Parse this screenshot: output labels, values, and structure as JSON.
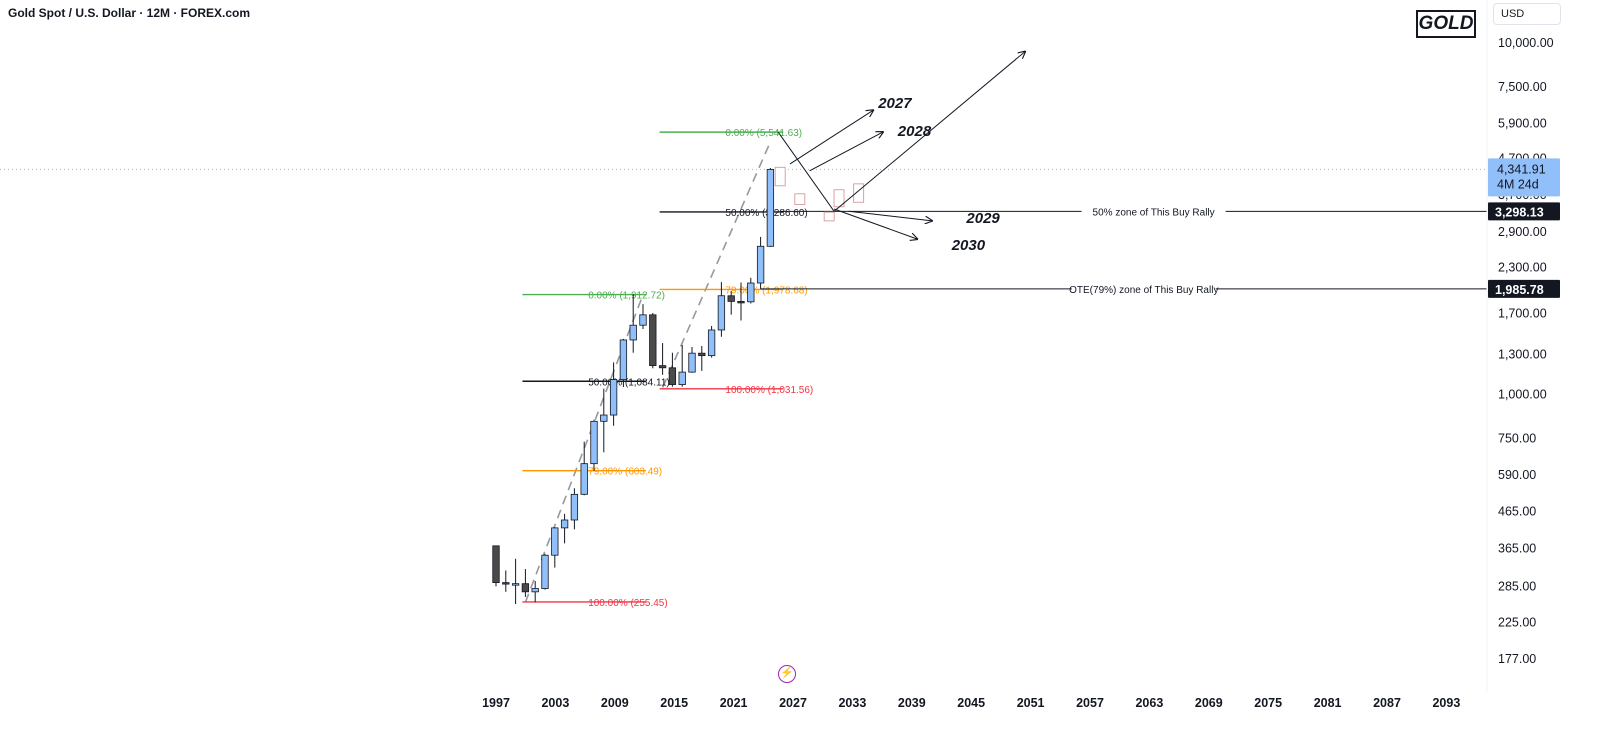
{
  "header": {
    "title": "Gold Spot / U.S. Dollar · 12M · FOREX.com"
  },
  "badge": {
    "label": "GOLD"
  },
  "currency_button": {
    "label": "USD"
  },
  "colors": {
    "up": "#90bff9",
    "down": "#4a4a4a",
    "ghost_up": "#ffffff",
    "ghost_border": "#d9a3a3",
    "fib_top": "#4caf50",
    "fib_mid": "#131722",
    "fib_ote": "#ff9800",
    "fib_bottom": "#f23645",
    "trend": "#9598a1",
    "flash": "#9c27b0"
  },
  "chart_data": {
    "type": "candlestick",
    "symbol": "Gold Spot / U.S. Dollar",
    "timeframe": "12M",
    "scale": "log",
    "x_ticks": [
      "1997",
      "2003",
      "2009",
      "2015",
      "2021",
      "2027",
      "2033",
      "2039",
      "2045",
      "2051",
      "2057",
      "2063",
      "2069",
      "2075",
      "2081",
      "2087",
      "2093"
    ],
    "y_ticks": [
      "10,000.00",
      "7,500.00",
      "5,900.00",
      "4,700.00",
      "3,700.00",
      "2,900.00",
      "2,300.00",
      "1,700.00",
      "1,300.00",
      "1,000.00",
      "750.00",
      "590.00",
      "465.00",
      "365.00",
      "285.00",
      "225.00",
      "177.00"
    ],
    "candles": [
      {
        "year": 1997,
        "open": 369,
        "high": 369,
        "low": 283,
        "close": 290
      },
      {
        "year": 1998,
        "open": 290,
        "high": 314,
        "low": 273,
        "close": 288
      },
      {
        "year": 1999,
        "open": 288,
        "high": 339,
        "low": 252,
        "close": 288
      },
      {
        "year": 2000,
        "open": 288,
        "high": 317,
        "low": 264,
        "close": 273
      },
      {
        "year": 2001,
        "open": 273,
        "high": 293,
        "low": 255,
        "close": 279
      },
      {
        "year": 2002,
        "open": 279,
        "high": 350,
        "low": 277,
        "close": 347
      },
      {
        "year": 2003,
        "open": 347,
        "high": 417,
        "low": 320,
        "close": 415
      },
      {
        "year": 2004,
        "open": 415,
        "high": 455,
        "low": 375,
        "close": 437
      },
      {
        "year": 2005,
        "open": 437,
        "high": 538,
        "low": 411,
        "close": 517
      },
      {
        "year": 2006,
        "open": 517,
        "high": 730,
        "low": 514,
        "close": 632
      },
      {
        "year": 2007,
        "open": 632,
        "high": 842,
        "low": 603,
        "close": 834
      },
      {
        "year": 2008,
        "open": 834,
        "high": 1033,
        "low": 681,
        "close": 869
      },
      {
        "year": 2009,
        "open": 869,
        "high": 1227,
        "low": 810,
        "close": 1096
      },
      {
        "year": 2010,
        "open": 1096,
        "high": 1431,
        "low": 1044,
        "close": 1421
      },
      {
        "year": 2011,
        "open": 1421,
        "high": 1920,
        "low": 1307,
        "close": 1565
      },
      {
        "year": 2012,
        "open": 1565,
        "high": 1796,
        "low": 1527,
        "close": 1675
      },
      {
        "year": 2013,
        "open": 1675,
        "high": 1696,
        "low": 1180,
        "close": 1201
      },
      {
        "year": 2014,
        "open": 1201,
        "high": 1392,
        "low": 1131,
        "close": 1184
      },
      {
        "year": 2015,
        "open": 1184,
        "high": 1307,
        "low": 1046,
        "close": 1061
      },
      {
        "year": 2016,
        "open": 1061,
        "high": 1375,
        "low": 1046,
        "close": 1151
      },
      {
        "year": 2017,
        "open": 1151,
        "high": 1357,
        "low": 1146,
        "close": 1303
      },
      {
        "year": 2018,
        "open": 1303,
        "high": 1366,
        "low": 1160,
        "close": 1282
      },
      {
        "year": 2019,
        "open": 1282,
        "high": 1557,
        "low": 1266,
        "close": 1517
      },
      {
        "year": 2020,
        "open": 1517,
        "high": 2075,
        "low": 1451,
        "close": 1898
      },
      {
        "year": 2021,
        "open": 1898,
        "high": 1959,
        "low": 1677,
        "close": 1829
      },
      {
        "year": 2022,
        "open": 1829,
        "high": 2070,
        "low": 1614,
        "close": 1824
      },
      {
        "year": 2023,
        "open": 1824,
        "high": 2135,
        "low": 1804,
        "close": 2063
      },
      {
        "year": 2024,
        "open": 2063,
        "high": 2790,
        "low": 1985,
        "close": 2624
      },
      {
        "year": 2025,
        "open": 2624,
        "high": 4381,
        "low": 2614,
        "close": 4342
      }
    ],
    "projected_candles": [
      {
        "year": 2026,
        "open": 4400,
        "close": 3900
      },
      {
        "year": 2028,
        "open": 3700,
        "close": 3450
      },
      {
        "year": 2031,
        "open": 3280,
        "close": 3100
      },
      {
        "year": 2032,
        "open": 3800,
        "close": 3400
      },
      {
        "year": 2034,
        "open": 3950,
        "close": 3500
      }
    ],
    "fib_levels": [
      {
        "label": "0.00% (1,912.72)",
        "price": 1912.72,
        "from_year": 2000,
        "to_year": 2012,
        "kind": "top"
      },
      {
        "label": "50.00% (1,084.11)",
        "price": 1084.11,
        "from_year": 2000,
        "to_year": 2012,
        "kind": "mid"
      },
      {
        "label": "79.00% (603.49)",
        "price": 603.49,
        "from_year": 2000,
        "to_year": 2012,
        "kind": "ote"
      },
      {
        "label": "100.00% (255.45)",
        "price": 255.45,
        "from_year": 2000,
        "to_year": 2012,
        "kind": "bottom"
      },
      {
        "label": "0.00% (5,541.63)",
        "price": 5541.63,
        "from_year": 2014,
        "to_year": 2026,
        "kind": "top"
      },
      {
        "label": "50.00% (3,286.60)",
        "price": 3286.6,
        "from_year": 2014,
        "to_year": 2026,
        "kind": "mid"
      },
      {
        "label": "79.00% (1,978.68)",
        "price": 1978.68,
        "from_year": 2014,
        "to_year": 2026,
        "kind": "ote"
      },
      {
        "label": "100.00% (1,031.56)",
        "price": 1031.56,
        "from_year": 2014,
        "to_year": 2026,
        "kind": "bottom"
      }
    ],
    "horizontal_lines": [
      {
        "label": "50% zone of This Buy Rally",
        "price": 3298.13,
        "from_year": 2026
      },
      {
        "label": "OTE(79%) zone of This Buy Rally",
        "price": 1985.78,
        "from_year": 2024
      }
    ],
    "trend_lines": [
      {
        "from": {
          "year": 2000,
          "price": 255
        },
        "to": {
          "year": 2012,
          "price": 1910
        }
      },
      {
        "from": {
          "year": 2014,
          "price": 1040
        },
        "to": {
          "year": 2025,
          "price": 5200
        }
      }
    ],
    "projection_path": [
      {
        "year": 2025.8,
        "price": 5541
      },
      {
        "year": 2031.5,
        "price": 3300
      },
      {
        "year": 2051,
        "price": 9400
      }
    ],
    "projection_arrows": [
      {
        "label": "2027",
        "from": {
          "year": 2027,
          "price": 4500
        },
        "to": {
          "year": 2035.5,
          "price": 6400
        }
      },
      {
        "label": "2028",
        "from": {
          "year": 2029,
          "price": 4300
        },
        "to": {
          "year": 2036.5,
          "price": 5550
        }
      },
      {
        "label": "2029",
        "from": {
          "year": 2033,
          "price": 3300
        },
        "to": {
          "year": 2041.5,
          "price": 3100
        }
      },
      {
        "label": "2030",
        "from": {
          "year": 2031.5,
          "price": 3350
        },
        "to": {
          "year": 2040,
          "price": 2750
        }
      }
    ],
    "projection_labels": [
      {
        "text": "2027",
        "year": 2036,
        "price": 6500
      },
      {
        "text": "2028",
        "year": 2038,
        "price": 5400
      },
      {
        "text": "2029",
        "year": 2045,
        "price": 3060
      },
      {
        "text": "2030",
        "year": 2043.5,
        "price": 2560
      }
    ],
    "price_tags": [
      {
        "label": "4,341.91",
        "sub": "4M 24d",
        "price": 4341.91,
        "style": "last"
      },
      {
        "label": "3,298.13",
        "price": 3298.13,
        "style": "dark"
      },
      {
        "label": "1,985.78",
        "price": 1985.78,
        "style": "dark"
      }
    ],
    "dotted_price": 4341.91
  }
}
